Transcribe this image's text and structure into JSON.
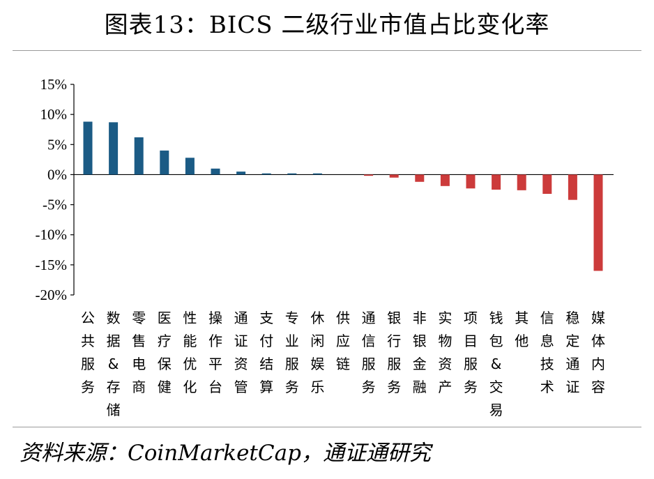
{
  "title": "图表13：BICS 二级行业市值占比变化率",
  "source": "资料来源：CoinMarketCap，通证通研究",
  "colors": {
    "positive": "#1b5b85",
    "negative": "#cc3b3b"
  },
  "chart_data": {
    "type": "bar",
    "title": "图表13：BICS 二级行业市值占比变化率",
    "ylim": [
      -20,
      15
    ],
    "yticks": [
      15,
      10,
      5,
      0,
      -5,
      -10,
      -15,
      -20
    ],
    "ytick_labels": [
      "15%",
      "10%",
      "5%",
      "0%",
      "-5%",
      "-10%",
      "-15%",
      "-20%"
    ],
    "grid": false,
    "categories": [
      "公共服务",
      "数据&存储",
      "零售电商",
      "医疗保健",
      "性能优化",
      "操作平台",
      "通证资管",
      "支付结算",
      "专业服务",
      "休闲娱乐",
      "供应链",
      "通信服务",
      "银行服务",
      "非银金融",
      "实物资产",
      "项目服务",
      "钱包&交易",
      "其他",
      "信息技术",
      "稳定通证",
      "媒体内容"
    ],
    "values": [
      8.8,
      8.7,
      6.2,
      4.0,
      2.8,
      1.0,
      0.5,
      0.2,
      0.2,
      0.2,
      0.0,
      -0.2,
      -0.5,
      -1.2,
      -1.9,
      -2.3,
      -2.5,
      -2.6,
      -3.2,
      -4.2,
      -16.0
    ]
  }
}
